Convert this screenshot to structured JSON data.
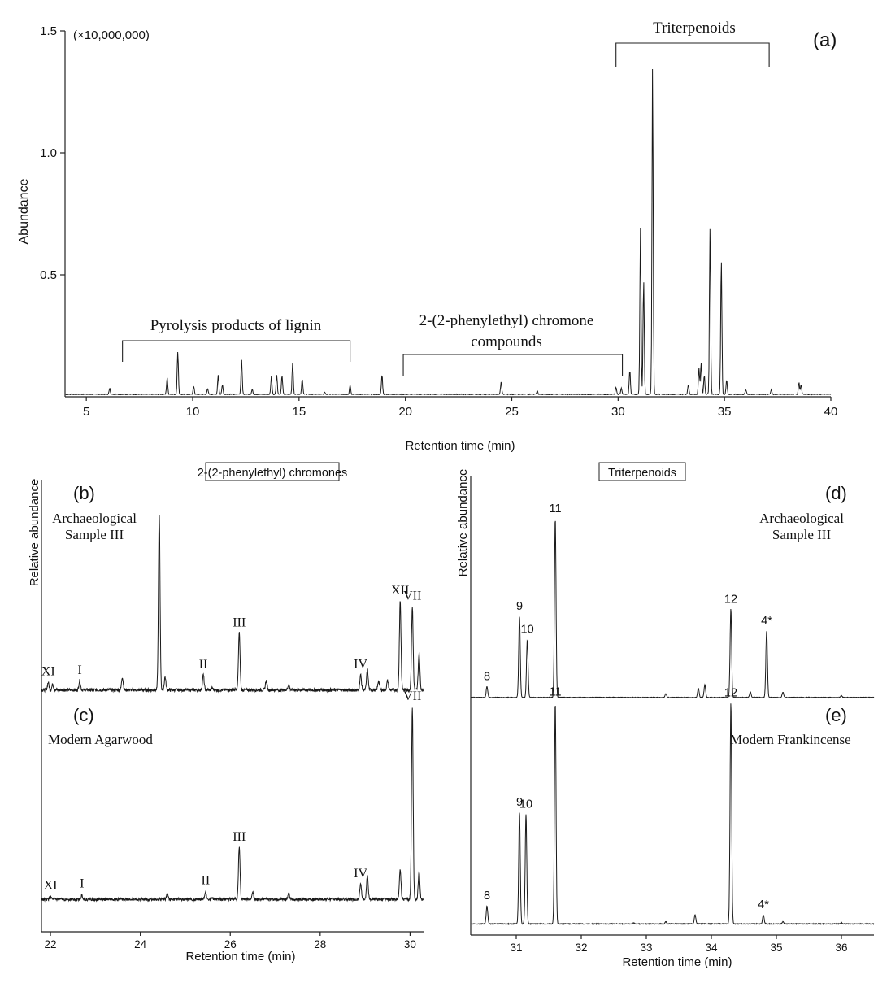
{
  "chart_data": [
    {
      "type": "line",
      "panel": "(a)",
      "xlabel": "Retention time (min)",
      "ylabel": "Abundance",
      "multiplier": "(×10,000,000)",
      "xlim": [
        4,
        40
      ],
      "ylim": [
        0,
        1.5
      ],
      "xticks": [
        "5",
        "10",
        "15",
        "20",
        "25",
        "30",
        "35",
        "40"
      ],
      "yticks": [
        "0.5",
        "1.0",
        "1.5"
      ],
      "baseline": 0.01,
      "peaks": [
        {
          "x": 6.1,
          "y": 0.035
        },
        {
          "x": 8.8,
          "y": 0.08
        },
        {
          "x": 9.3,
          "y": 0.185
        },
        {
          "x": 10.05,
          "y": 0.045
        },
        {
          "x": 10.7,
          "y": 0.035
        },
        {
          "x": 11.2,
          "y": 0.09
        },
        {
          "x": 11.4,
          "y": 0.05
        },
        {
          "x": 12.3,
          "y": 0.155
        },
        {
          "x": 12.8,
          "y": 0.03
        },
        {
          "x": 13.7,
          "y": 0.085
        },
        {
          "x": 13.95,
          "y": 0.09
        },
        {
          "x": 14.2,
          "y": 0.09
        },
        {
          "x": 14.7,
          "y": 0.14
        },
        {
          "x": 15.15,
          "y": 0.075
        },
        {
          "x": 16.2,
          "y": 0.02
        },
        {
          "x": 17.4,
          "y": 0.05
        },
        {
          "x": 18.9,
          "y": 0.09
        },
        {
          "x": 24.5,
          "y": 0.06
        },
        {
          "x": 26.2,
          "y": 0.025
        },
        {
          "x": 29.9,
          "y": 0.04
        },
        {
          "x": 30.15,
          "y": 0.035
        },
        {
          "x": 30.55,
          "y": 0.11
        },
        {
          "x": 31.05,
          "y": 0.69
        },
        {
          "x": 31.2,
          "y": 0.48
        },
        {
          "x": 31.62,
          "y": 1.35
        },
        {
          "x": 33.3,
          "y": 0.05
        },
        {
          "x": 33.8,
          "y": 0.12
        },
        {
          "x": 33.9,
          "y": 0.14
        },
        {
          "x": 34.05,
          "y": 0.09
        },
        {
          "x": 34.32,
          "y": 0.69
        },
        {
          "x": 34.85,
          "y": 0.57
        },
        {
          "x": 35.1,
          "y": 0.07
        },
        {
          "x": 36.0,
          "y": 0.03
        },
        {
          "x": 37.2,
          "y": 0.03
        },
        {
          "x": 38.5,
          "y": 0.06
        },
        {
          "x": 38.6,
          "y": 0.05
        }
      ],
      "annotations": [
        {
          "label": "Pyrolysis products of lignin",
          "from": 6.7,
          "to": 17.4
        },
        {
          "label": "2-(2-phenylethyl) chromone compounds",
          "line1": "2-(2-phenylethyl) chromone",
          "line2": "compounds",
          "from": 19.9,
          "to": 30.2
        },
        {
          "label": "Triterpenoids",
          "from": 29.9,
          "to": 37.1
        }
      ]
    },
    {
      "type": "line",
      "panel": "(b) / (c)",
      "box_title": "2-(2-phenylethyl) chromones",
      "xlabel": "Retention time (min)",
      "ylabel": "Relative abundance",
      "xlim": [
        21.8,
        30.3
      ],
      "xticks": [
        "22",
        "24",
        "26",
        "28",
        "30"
      ],
      "series": [
        {
          "panel": "(b)",
          "name": "Archaeological Sample III",
          "name_line1": "Archaeological",
          "name_line2": "Sample III",
          "ylim": [
            0,
            1
          ],
          "baseline": 0.05,
          "peaks": [
            {
              "x": 21.95,
              "y": 0.09
            },
            {
              "x": 22.05,
              "y": 0.08
            },
            {
              "x": 22.65,
              "y": 0.1
            },
            {
              "x": 23.3,
              "y": 0.05
            },
            {
              "x": 23.6,
              "y": 0.12
            },
            {
              "x": 24.42,
              "y": 1.0
            },
            {
              "x": 24.55,
              "y": 0.12
            },
            {
              "x": 25.4,
              "y": 0.13
            },
            {
              "x": 25.6,
              "y": 0.06
            },
            {
              "x": 26.2,
              "y": 0.36
            },
            {
              "x": 26.8,
              "y": 0.1
            },
            {
              "x": 27.3,
              "y": 0.08
            },
            {
              "x": 28.6,
              "y": 0.05
            },
            {
              "x": 28.9,
              "y": 0.13
            },
            {
              "x": 29.05,
              "y": 0.16
            },
            {
              "x": 29.3,
              "y": 0.1
            },
            {
              "x": 29.5,
              "y": 0.1
            },
            {
              "x": 29.78,
              "y": 0.53
            },
            {
              "x": 30.05,
              "y": 0.5
            },
            {
              "x": 30.2,
              "y": 0.25
            }
          ],
          "labels": [
            {
              "text": "XI",
              "x": 21.95
            },
            {
              "text": "I",
              "x": 22.65
            },
            {
              "text": "II",
              "x": 25.4
            },
            {
              "text": "III",
              "x": 26.2
            },
            {
              "text": "IV",
              "x": 28.9
            },
            {
              "text": "XII",
              "x": 29.78
            },
            {
              "text": "VII",
              "x": 30.05
            }
          ]
        },
        {
          "panel": "(c)",
          "name": "Modern Agarwood",
          "ylim": [
            0,
            1
          ],
          "baseline": 0.04,
          "peaks": [
            {
              "x": 22.0,
              "y": 0.055
            },
            {
              "x": 22.7,
              "y": 0.06
            },
            {
              "x": 24.6,
              "y": 0.07
            },
            {
              "x": 25.45,
              "y": 0.08
            },
            {
              "x": 25.6,
              "y": 0.05
            },
            {
              "x": 26.2,
              "y": 0.3
            },
            {
              "x": 26.5,
              "y": 0.08
            },
            {
              "x": 27.3,
              "y": 0.07
            },
            {
              "x": 28.9,
              "y": 0.12
            },
            {
              "x": 29.05,
              "y": 0.16
            },
            {
              "x": 29.78,
              "y": 0.19
            },
            {
              "x": 30.05,
              "y": 1.0
            },
            {
              "x": 30.2,
              "y": 0.18
            }
          ],
          "labels": [
            {
              "text": "XI",
              "x": 22.0
            },
            {
              "text": "I",
              "x": 22.7
            },
            {
              "text": "II",
              "x": 25.45
            },
            {
              "text": "III",
              "x": 26.2
            },
            {
              "text": "IV",
              "x": 28.9
            },
            {
              "text": "VII",
              "x": 30.05
            }
          ]
        }
      ]
    },
    {
      "type": "line",
      "panel": "(d) / (e)",
      "box_title": "Triterpenoids",
      "xlabel": "Retention time (min)",
      "ylabel": "Relative abundance",
      "xlim": [
        30.3,
        36.5
      ],
      "xticks": [
        "31",
        "32",
        "33",
        "34",
        "35",
        "36"
      ],
      "series": [
        {
          "panel": "(d)",
          "name": "Archaeological Sample III",
          "name_line1": "Archaeological",
          "name_line2": "Sample III",
          "ylim": [
            0,
            1
          ],
          "baseline": 0.01,
          "peaks": [
            {
              "x": 30.55,
              "y": 0.07
            },
            {
              "x": 31.05,
              "y": 0.46
            },
            {
              "x": 31.17,
              "y": 0.33
            },
            {
              "x": 31.6,
              "y": 1.0
            },
            {
              "x": 33.3,
              "y": 0.03
            },
            {
              "x": 33.8,
              "y": 0.06
            },
            {
              "x": 33.9,
              "y": 0.08
            },
            {
              "x": 34.3,
              "y": 0.5
            },
            {
              "x": 34.6,
              "y": 0.04
            },
            {
              "x": 34.85,
              "y": 0.38
            },
            {
              "x": 35.1,
              "y": 0.04
            },
            {
              "x": 36.0,
              "y": 0.02
            }
          ],
          "labels": [
            {
              "text": "8",
              "x": 30.55
            },
            {
              "text": "9",
              "x": 31.05
            },
            {
              "text": "10",
              "x": 31.17
            },
            {
              "text": "11",
              "x": 31.6
            },
            {
              "text": "12",
              "x": 34.3
            },
            {
              "text": "4*",
              "x": 34.85
            }
          ]
        },
        {
          "panel": "(e)",
          "name": "Modern Frankincense",
          "ylim": [
            0,
            1
          ],
          "baseline": 0.01,
          "peaks": [
            {
              "x": 30.55,
              "y": 0.09
            },
            {
              "x": 31.05,
              "y": 0.51
            },
            {
              "x": 31.15,
              "y": 0.5
            },
            {
              "x": 31.6,
              "y": 1.0
            },
            {
              "x": 32.8,
              "y": 0.015
            },
            {
              "x": 33.3,
              "y": 0.02
            },
            {
              "x": 33.75,
              "y": 0.05
            },
            {
              "x": 34.3,
              "y": 1.0
            },
            {
              "x": 34.8,
              "y": 0.05
            },
            {
              "x": 35.1,
              "y": 0.02
            },
            {
              "x": 36.0,
              "y": 0.015
            }
          ],
          "labels": [
            {
              "text": "8",
              "x": 30.55
            },
            {
              "text": "9",
              "x": 31.05
            },
            {
              "text": "10",
              "x": 31.15
            },
            {
              "text": "11",
              "x": 31.6
            },
            {
              "text": "12",
              "x": 34.3
            },
            {
              "text": "4*",
              "x": 34.8
            }
          ]
        }
      ]
    }
  ]
}
